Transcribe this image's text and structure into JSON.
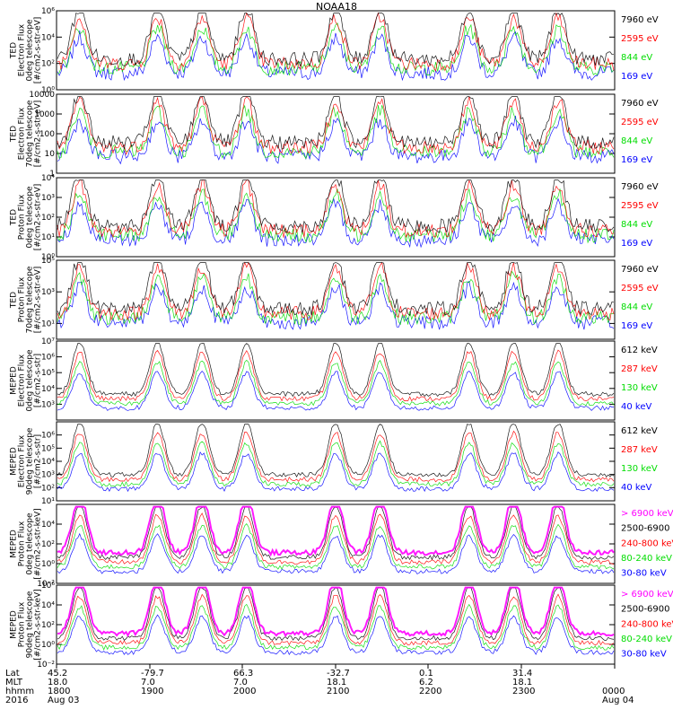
{
  "title": "NOAA18",
  "colors": {
    "black": "#000000",
    "red": "#ff0000",
    "green": "#00dd00",
    "blue": "#0000ff",
    "magenta": "#ff00ff"
  },
  "chart_data": [
    {
      "type": "line",
      "yscale": "log",
      "ylabel": [
        "TED",
        "Electron Flux",
        "0deg telescope",
        "[#/cm2-s-str-eV]"
      ],
      "ylim": [
        1,
        1000000
      ],
      "yticks": [
        {
          "v": 1,
          "label": "10⁰"
        },
        {
          "v": 100,
          "label": "10²"
        },
        {
          "v": 10000,
          "label": "10⁴"
        },
        {
          "v": 1000000,
          "label": "10⁶"
        }
      ],
      "legend": [
        {
          "label": "7960 eV",
          "color": "black"
        },
        {
          "label": "2595 eV",
          "color": "red"
        },
        {
          "label": "844 eV",
          "color": "green"
        },
        {
          "label": "169 eV",
          "color": "blue"
        }
      ]
    },
    {
      "type": "line",
      "yscale": "log",
      "ylabel": [
        "TED",
        "Electron Flux",
        "70deg telescope",
        "[#/cm2-s-str-eV]"
      ],
      "ylim": [
        1,
        10000
      ],
      "yticks": [
        {
          "v": 1,
          "label": "1"
        },
        {
          "v": 10,
          "label": "10"
        },
        {
          "v": 100,
          "label": "100"
        },
        {
          "v": 1000,
          "label": "1000"
        },
        {
          "v": 10000,
          "label": "10000"
        }
      ],
      "legend": [
        {
          "label": "7960 eV",
          "color": "black"
        },
        {
          "label": "2595 eV",
          "color": "red"
        },
        {
          "label": "844 eV",
          "color": "green"
        },
        {
          "label": "169 eV",
          "color": "blue"
        }
      ]
    },
    {
      "type": "line",
      "yscale": "log",
      "ylabel": [
        "TED",
        "Proton Flux",
        "0deg telescope",
        "[#/cm2-s-str-eV]"
      ],
      "ylim": [
        1,
        10000
      ],
      "yticks": [
        {
          "v": 1,
          "label": "10⁰"
        },
        {
          "v": 10,
          "label": "10¹"
        },
        {
          "v": 100,
          "label": "10²"
        },
        {
          "v": 1000,
          "label": "10³"
        },
        {
          "v": 10000,
          "label": "10⁴"
        }
      ],
      "legend": [
        {
          "label": "7960 eV",
          "color": "black"
        },
        {
          "label": "2595 eV",
          "color": "red"
        },
        {
          "label": "844 eV",
          "color": "green"
        },
        {
          "label": "169 eV",
          "color": "blue"
        }
      ]
    },
    {
      "type": "line",
      "yscale": "log",
      "ylabel": [
        "TED",
        "Proton Flux",
        "70deg telescope",
        "[#/cm2-s-str-eV]"
      ],
      "ylim": [
        1,
        100000
      ],
      "yticks": [
        {
          "v": 10,
          "label": "10¹"
        },
        {
          "v": 1000,
          "label": "10³"
        },
        {
          "v": 100000,
          "label": "10⁵"
        }
      ],
      "legend": [
        {
          "label": "7960 eV",
          "color": "black"
        },
        {
          "label": "2595 eV",
          "color": "red"
        },
        {
          "label": "844 eV",
          "color": "green"
        },
        {
          "label": "169 eV",
          "color": "blue"
        }
      ]
    },
    {
      "type": "line",
      "yscale": "log",
      "ylabel": [
        "MEPED",
        "Electron Flux",
        "0deg telescope",
        "[#/cm2-s-str]"
      ],
      "ylim": [
        100,
        10000000
      ],
      "yticks": [
        {
          "v": 1000,
          "label": "10³"
        },
        {
          "v": 10000,
          "label": "10⁴"
        },
        {
          "v": 100000,
          "label": "10⁵"
        },
        {
          "v": 1000000,
          "label": "10⁶"
        },
        {
          "v": 10000000,
          "label": "10⁷"
        }
      ],
      "legend": [
        {
          "label": "612 keV",
          "color": "black"
        },
        {
          "label": "287 keV",
          "color": "red"
        },
        {
          "label": "130 keV",
          "color": "green"
        },
        {
          "label": "40 keV",
          "color": "blue"
        }
      ]
    },
    {
      "type": "line",
      "yscale": "log",
      "ylabel": [
        "MEPED",
        "Electron Flux",
        "90deg telescope",
        "[#/cm2-s-str]"
      ],
      "ylim": [
        10,
        10000000
      ],
      "yticks": [
        {
          "v": 10,
          "label": "10¹"
        },
        {
          "v": 100,
          "label": "10²"
        },
        {
          "v": 1000,
          "label": "10³"
        },
        {
          "v": 10000,
          "label": "10⁴"
        },
        {
          "v": 100000,
          "label": "10⁵"
        },
        {
          "v": 1000000,
          "label": "10⁶"
        }
      ],
      "legend": [
        {
          "label": "612 keV",
          "color": "black"
        },
        {
          "label": "287 keV",
          "color": "red"
        },
        {
          "label": "130 keV",
          "color": "green"
        },
        {
          "label": "40 keV",
          "color": "blue"
        }
      ]
    },
    {
      "type": "line",
      "yscale": "log",
      "ylabel": [
        "MEPED",
        "Proton Flux",
        "0deg telescope",
        "[#/cm2-s-str-keV]"
      ],
      "ylim": [
        0.01,
        1000000
      ],
      "yticks": [
        {
          "v": 0.01,
          "label": "10⁻²"
        },
        {
          "v": 1,
          "label": "10⁰"
        },
        {
          "v": 100,
          "label": "10²"
        },
        {
          "v": 10000,
          "label": "10⁴"
        }
      ],
      "legend": [
        {
          "label": "> 6900 keV",
          "color": "magenta"
        },
        {
          "label": "2500-6900",
          "color": "black"
        },
        {
          "label": "240-800 keV",
          "color": "red"
        },
        {
          "label": "80-240 keV",
          "color": "green"
        },
        {
          "label": "30-80 keV",
          "color": "blue"
        }
      ]
    },
    {
      "type": "line",
      "yscale": "log",
      "ylabel": [
        "MEPED",
        "Proton Flux",
        "90deg telescope",
        "[#/cm2-s-str-keV]"
      ],
      "ylim": [
        0.01,
        1000000
      ],
      "yticks": [
        {
          "v": 0.01,
          "label": "10⁻²"
        },
        {
          "v": 1,
          "label": "10⁰"
        },
        {
          "v": 100,
          "label": "10²"
        },
        {
          "v": 10000,
          "label": "10⁴"
        },
        {
          "v": 1000000,
          "label": "10⁶"
        }
      ],
      "legend": [
        {
          "label": "> 6900 keV",
          "color": "magenta"
        },
        {
          "label": "2500-6900",
          "color": "black"
        },
        {
          "label": "240-800 keV",
          "color": "red"
        },
        {
          "label": "80-240 keV",
          "color": "green"
        },
        {
          "label": "30-80 keV",
          "color": "blue"
        }
      ]
    }
  ],
  "xaxis": {
    "row_labels": [
      "Lat",
      "MLT",
      "hhmm",
      "2016"
    ],
    "columns": [
      {
        "lat": "45.2",
        "mlt": "18.0",
        "hhmm": "1800",
        "date": "Aug 03"
      },
      {
        "lat": "-79.7",
        "mlt": "7.0",
        "hhmm": "1900",
        "date": ""
      },
      {
        "lat": "66.3",
        "mlt": "7.0",
        "hhmm": "2000",
        "date": ""
      },
      {
        "lat": "-32.7",
        "mlt": "18.1",
        "hhmm": "2100",
        "date": ""
      },
      {
        "lat": "0.1",
        "mlt": "6.2",
        "hhmm": "2200",
        "date": ""
      },
      {
        "lat": "31.4",
        "mlt": "18.1",
        "hhmm": "2300",
        "date": ""
      },
      {
        "lat": "",
        "mlt": "",
        "hhmm": "0000",
        "date": "Aug 04"
      }
    ]
  }
}
